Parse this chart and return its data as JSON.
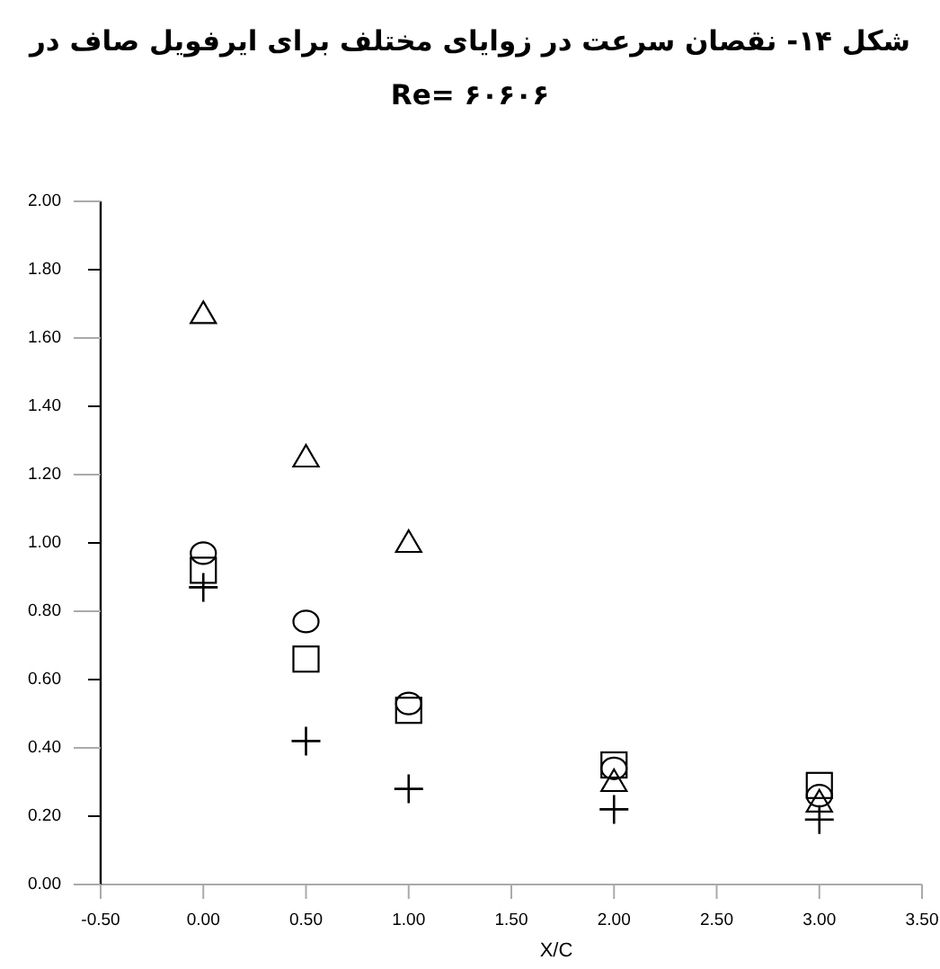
{
  "chart_data": {
    "type": "scatter",
    "title": "شکل ۱۴- نقصان سرعت در زوایای مختلف برای ایرفویل صاف در",
    "subtitle": "Re= ۶۰۶۰۶",
    "xlabel": "X/C",
    "x": [
      0,
      0.5,
      1,
      2,
      3
    ],
    "series": [
      {
        "color": "#000000",
        "marker": "triangle",
        "values": [
          1.67,
          1.25,
          1.0,
          0.3,
          0.24
        ]
      },
      {
        "color": "#000000",
        "marker": "circle",
        "values": [
          0.97,
          0.77,
          0.53,
          0.34,
          0.26
        ]
      },
      {
        "color": "#000000",
        "marker": "square",
        "values": [
          0.92,
          0.66,
          0.51,
          0.35,
          0.29
        ]
      },
      {
        "color": "#000000",
        "marker": "cross",
        "values": [
          0.87,
          0.42,
          0.28,
          0.22,
          0.19
        ]
      }
    ],
    "xlim": [
      -0.5,
      3.5
    ],
    "ylim": [
      0,
      2
    ],
    "xticks": [
      {
        "value": -0.5,
        "label": "-0.50"
      },
      {
        "value": 0,
        "label": "0.00"
      },
      {
        "value": 0.5,
        "label": "0.50"
      },
      {
        "value": 1,
        "label": "1.00"
      },
      {
        "value": 1.5,
        "label": "1.50"
      },
      {
        "value": 2,
        "label": "2.00"
      },
      {
        "value": 2.5,
        "label": "2.50"
      },
      {
        "value": 3,
        "label": "3.00"
      },
      {
        "value": 3.5,
        "label": "3.50"
      }
    ],
    "yticks": [
      {
        "value": 0,
        "label": "0.00"
      },
      {
        "value": 0.2,
        "label": "0.20"
      },
      {
        "value": 0.4,
        "label": "0.40"
      },
      {
        "value": 0.6,
        "label": "0.60"
      },
      {
        "value": 0.8,
        "label": "0.80"
      },
      {
        "value": 1,
        "label": "1.00"
      },
      {
        "value": 1.2,
        "label": "1.20"
      },
      {
        "value": 1.4,
        "label": "1.40"
      },
      {
        "value": 1.6,
        "label": "1.60"
      },
      {
        "value": 1.8,
        "label": "1.80"
      },
      {
        "value": 2,
        "label": "2.00"
      }
    ],
    "grid": false
  }
}
